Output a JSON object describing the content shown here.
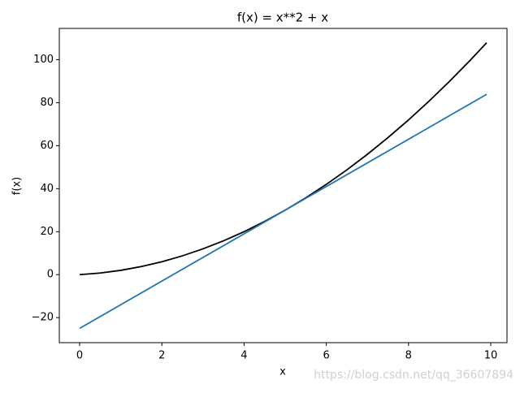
{
  "chart_data": {
    "type": "line",
    "title": "f(x) = x**2 + x",
    "x_label": "x",
    "y_label": "f(x)",
    "watermark": "https://blog.csdn.net/qq_36607894",
    "series": [
      {
        "color": "#000000",
        "x": [
          0,
          0.5,
          1,
          1.5,
          2,
          2.5,
          3,
          3.5,
          4,
          4.5,
          5,
          5.5,
          6,
          6.5,
          7,
          7.5,
          8,
          8.5,
          9,
          9.5,
          9.9
        ],
        "values": [
          0,
          0.75,
          2,
          3.75,
          6,
          8.75,
          12,
          15.75,
          20,
          24.75,
          30,
          35.75,
          42,
          48.75,
          56,
          63.75,
          72,
          80.75,
          90,
          99.75,
          107.91
        ]
      },
      {
        "color": "#1f77b4",
        "x": [
          0,
          9.9
        ],
        "values": [
          -25,
          83.9
        ]
      }
    ],
    "xlim": [
      -0.495,
      10.395
    ],
    "ylim": [
      -31.65,
      114.56
    ],
    "xticks": [
      0,
      2,
      4,
      6,
      8,
      10
    ],
    "yticks": [
      {
        "value": -20,
        "label": "−20"
      },
      0,
      20,
      40,
      60,
      80,
      100
    ]
  }
}
